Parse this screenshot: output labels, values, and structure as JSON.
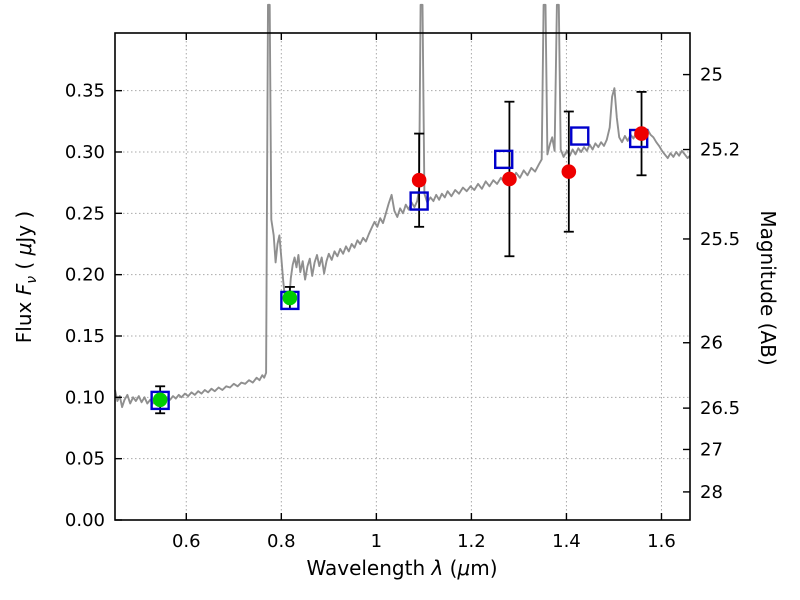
{
  "chart_data": {
    "type": "line",
    "description": "Galaxy SED: model spectrum (gray line) with observed photometry (filled circles with error bars) and model photometry (open blue squares)",
    "title": "",
    "xlabel": "Wavelength λ (μm)",
    "ylabel_left": "Flux Fν ( μJy )",
    "ylabel_right": "Magnitude (AB)",
    "xlabel_parts": [
      {
        "text": "Wavelength  ",
        "style": "plain"
      },
      {
        "text": "λ",
        "style": "italic"
      },
      {
        "text": " (",
        "style": "plain"
      },
      {
        "text": "μ",
        "style": "italic"
      },
      {
        "text": "m)",
        "style": "plain"
      }
    ],
    "ylabel_left_parts": [
      {
        "text": "Flux  ",
        "style": "plain"
      },
      {
        "text": "F",
        "style": "italic"
      },
      {
        "text": "ν",
        "style": "sub"
      },
      {
        "text": "  ( ",
        "style": "plain"
      },
      {
        "text": "μ",
        "style": "italic"
      },
      {
        "text": "Jy )",
        "style": "plain"
      }
    ],
    "xlim": [
      0.45,
      1.66
    ],
    "ylim": [
      0.0,
      0.397
    ],
    "grid": true,
    "x_ticks": [
      0.6,
      0.8,
      1.0,
      1.2,
      1.4,
      1.6
    ],
    "x_tick_labels": [
      "0.6",
      "0.8",
      "1",
      "1.2",
      "1.4",
      "1.6"
    ],
    "y_ticks_left": [
      0.0,
      0.05,
      0.1,
      0.15,
      0.2,
      0.25,
      0.3,
      0.35
    ],
    "y_tick_labels_left": [
      "0.00",
      "0.05",
      "0.10",
      "0.15",
      "0.20",
      "0.25",
      "0.30",
      "0.35"
    ],
    "y_ticks_right": [
      {
        "label": "25",
        "flux": 0.3631
      },
      {
        "label": "25.2",
        "flux": 0.302
      },
      {
        "label": "25.5",
        "flux": 0.2291
      },
      {
        "label": "26",
        "flux": 0.1445
      },
      {
        "label": "26.5",
        "flux": 0.0912
      },
      {
        "label": "27",
        "flux": 0.0575
      },
      {
        "label": "28",
        "flux": 0.0229
      }
    ],
    "colors": {
      "spectrum": "#8f8f8f",
      "observed_green": "#00cc00",
      "observed_red": "#ee0000",
      "model": "#0000cc",
      "errorbar": "#000000",
      "grid": "#aaaaaa",
      "frame": "#000000"
    },
    "observed": [
      {
        "x": 0.545,
        "y": 0.098,
        "yerr": 0.011,
        "color": "#00cc00"
      },
      {
        "x": 0.818,
        "y": 0.181,
        "yerr": 0.009,
        "color": "#00cc00"
      },
      {
        "x": 1.09,
        "y": 0.277,
        "yerr": 0.038,
        "color": "#ee0000"
      },
      {
        "x": 1.28,
        "y": 0.278,
        "yerr": 0.063,
        "color": "#ee0000"
      },
      {
        "x": 1.405,
        "y": 0.284,
        "yerr": 0.049,
        "color": "#ee0000"
      },
      {
        "x": 1.558,
        "y": 0.315,
        "yerr": 0.034,
        "color": "#ee0000"
      }
    ],
    "model": [
      {
        "x": 0.545,
        "y": 0.0975
      },
      {
        "x": 0.818,
        "y": 0.179
      },
      {
        "x": 1.09,
        "y": 0.26
      },
      {
        "x": 1.268,
        "y": 0.294
      },
      {
        "x": 1.428,
        "y": 0.313
      },
      {
        "x": 1.552,
        "y": 0.311
      }
    ],
    "spectrum": [
      [
        0.45,
        0.106
      ],
      [
        0.455,
        0.097
      ],
      [
        0.46,
        0.101
      ],
      [
        0.465,
        0.092
      ],
      [
        0.47,
        0.098
      ],
      [
        0.476,
        0.102
      ],
      [
        0.482,
        0.095
      ],
      [
        0.488,
        0.1
      ],
      [
        0.494,
        0.097
      ],
      [
        0.5,
        0.101
      ],
      [
        0.506,
        0.096
      ],
      [
        0.512,
        0.1
      ],
      [
        0.518,
        0.095
      ],
      [
        0.524,
        0.098
      ],
      [
        0.53,
        0.095
      ],
      [
        0.536,
        0.098
      ],
      [
        0.542,
        0.096
      ],
      [
        0.548,
        0.099
      ],
      [
        0.554,
        0.097
      ],
      [
        0.56,
        0.1
      ],
      [
        0.566,
        0.098
      ],
      [
        0.572,
        0.101
      ],
      [
        0.578,
        0.099
      ],
      [
        0.584,
        0.102
      ],
      [
        0.59,
        0.1
      ],
      [
        0.597,
        0.103
      ],
      [
        0.604,
        0.101
      ],
      [
        0.611,
        0.104
      ],
      [
        0.618,
        0.102
      ],
      [
        0.625,
        0.105
      ],
      [
        0.632,
        0.103
      ],
      [
        0.639,
        0.106
      ],
      [
        0.646,
        0.104
      ],
      [
        0.653,
        0.107
      ],
      [
        0.66,
        0.105
      ],
      [
        0.668,
        0.108
      ],
      [
        0.676,
        0.106
      ],
      [
        0.684,
        0.109
      ],
      [
        0.692,
        0.108
      ],
      [
        0.7,
        0.111
      ],
      [
        0.708,
        0.109
      ],
      [
        0.716,
        0.112
      ],
      [
        0.724,
        0.111
      ],
      [
        0.732,
        0.114
      ],
      [
        0.74,
        0.112
      ],
      [
        0.748,
        0.116
      ],
      [
        0.754,
        0.114
      ],
      [
        0.76,
        0.118
      ],
      [
        0.764,
        0.116
      ],
      [
        0.768,
        0.12
      ],
      [
        0.772,
        0.42
      ],
      [
        0.7755,
        0.42
      ],
      [
        0.779,
        0.245
      ],
      [
        0.784,
        0.232
      ],
      [
        0.788,
        0.21
      ],
      [
        0.792,
        0.225
      ],
      [
        0.796,
        0.232
      ],
      [
        0.8,
        0.214
      ],
      [
        0.804,
        0.195
      ],
      [
        0.808,
        0.18
      ],
      [
        0.812,
        0.184
      ],
      [
        0.816,
        0.177
      ],
      [
        0.82,
        0.197
      ],
      [
        0.824,
        0.208
      ],
      [
        0.828,
        0.214
      ],
      [
        0.832,
        0.206
      ],
      [
        0.836,
        0.216
      ],
      [
        0.84,
        0.202
      ],
      [
        0.845,
        0.211
      ],
      [
        0.85,
        0.196
      ],
      [
        0.855,
        0.207
      ],
      [
        0.86,
        0.213
      ],
      [
        0.865,
        0.199
      ],
      [
        0.87,
        0.21
      ],
      [
        0.875,
        0.216
      ],
      [
        0.88,
        0.207
      ],
      [
        0.885,
        0.214
      ],
      [
        0.89,
        0.201
      ],
      [
        0.895,
        0.211
      ],
      [
        0.9,
        0.217
      ],
      [
        0.906,
        0.212
      ],
      [
        0.912,
        0.219
      ],
      [
        0.918,
        0.215
      ],
      [
        0.924,
        0.221
      ],
      [
        0.93,
        0.217
      ],
      [
        0.936,
        0.223
      ],
      [
        0.942,
        0.219
      ],
      [
        0.948,
        0.225
      ],
      [
        0.954,
        0.222
      ],
      [
        0.96,
        0.228
      ],
      [
        0.966,
        0.225
      ],
      [
        0.972,
        0.23
      ],
      [
        0.978,
        0.227
      ],
      [
        0.984,
        0.233
      ],
      [
        0.99,
        0.238
      ],
      [
        0.996,
        0.243
      ],
      [
        1.002,
        0.239
      ],
      [
        1.008,
        0.246
      ],
      [
        1.014,
        0.242
      ],
      [
        1.02,
        0.25
      ],
      [
        1.026,
        0.258
      ],
      [
        1.032,
        0.265
      ],
      [
        1.038,
        0.252
      ],
      [
        1.044,
        0.247
      ],
      [
        1.05,
        0.254
      ],
      [
        1.056,
        0.25
      ],
      [
        1.062,
        0.257
      ],
      [
        1.068,
        0.253
      ],
      [
        1.074,
        0.259
      ],
      [
        1.08,
        0.255
      ],
      [
        1.086,
        0.26
      ],
      [
        1.09,
        0.27
      ],
      [
        1.093,
        0.42
      ],
      [
        1.097,
        0.42
      ],
      [
        1.101,
        0.266
      ],
      [
        1.107,
        0.259
      ],
      [
        1.114,
        0.263
      ],
      [
        1.12,
        0.26
      ],
      [
        1.126,
        0.265
      ],
      [
        1.132,
        0.261
      ],
      [
        1.138,
        0.266
      ],
      [
        1.144,
        0.263
      ],
      [
        1.15,
        0.268
      ],
      [
        1.158,
        0.264
      ],
      [
        1.166,
        0.269
      ],
      [
        1.174,
        0.266
      ],
      [
        1.182,
        0.271
      ],
      [
        1.19,
        0.268
      ],
      [
        1.198,
        0.272
      ],
      [
        1.206,
        0.269
      ],
      [
        1.214,
        0.274
      ],
      [
        1.222,
        0.27
      ],
      [
        1.23,
        0.276
      ],
      [
        1.238,
        0.272
      ],
      [
        1.246,
        0.277
      ],
      [
        1.254,
        0.274
      ],
      [
        1.262,
        0.279
      ],
      [
        1.27,
        0.275
      ],
      [
        1.278,
        0.281
      ],
      [
        1.286,
        0.277
      ],
      [
        1.294,
        0.283
      ],
      [
        1.302,
        0.279
      ],
      [
        1.31,
        0.285
      ],
      [
        1.318,
        0.281
      ],
      [
        1.326,
        0.287
      ],
      [
        1.334,
        0.284
      ],
      [
        1.342,
        0.29
      ],
      [
        1.348,
        0.294
      ],
      [
        1.352,
        0.42
      ],
      [
        1.356,
        0.42
      ],
      [
        1.36,
        0.298
      ],
      [
        1.365,
        0.306
      ],
      [
        1.37,
        0.312
      ],
      [
        1.375,
        0.301
      ],
      [
        1.38,
        0.42
      ],
      [
        1.384,
        0.42
      ],
      [
        1.388,
        0.302
      ],
      [
        1.394,
        0.296
      ],
      [
        1.401,
        0.301
      ],
      [
        1.407,
        0.297
      ],
      [
        1.413,
        0.302
      ],
      [
        1.419,
        0.298
      ],
      [
        1.425,
        0.303
      ],
      [
        1.431,
        0.3
      ],
      [
        1.437,
        0.304
      ],
      [
        1.443,
        0.301
      ],
      [
        1.449,
        0.306
      ],
      [
        1.455,
        0.302
      ],
      [
        1.461,
        0.307
      ],
      [
        1.467,
        0.304
      ],
      [
        1.473,
        0.308
      ],
      [
        1.479,
        0.305
      ],
      [
        1.485,
        0.31
      ],
      [
        1.491,
        0.32
      ],
      [
        1.496,
        0.345
      ],
      [
        1.501,
        0.352
      ],
      [
        1.506,
        0.328
      ],
      [
        1.511,
        0.312
      ],
      [
        1.517,
        0.308
      ],
      [
        1.523,
        0.313
      ],
      [
        1.529,
        0.309
      ],
      [
        1.535,
        0.314
      ],
      [
        1.541,
        0.311
      ],
      [
        1.547,
        0.316
      ],
      [
        1.553,
        0.312
      ],
      [
        1.559,
        0.317
      ],
      [
        1.565,
        0.313
      ],
      [
        1.571,
        0.318
      ],
      [
        1.577,
        0.314
      ],
      [
        1.583,
        0.312
      ],
      [
        1.589,
        0.308
      ],
      [
        1.595,
        0.305
      ],
      [
        1.601,
        0.301
      ],
      [
        1.607,
        0.298
      ],
      [
        1.613,
        0.295
      ],
      [
        1.619,
        0.299
      ],
      [
        1.625,
        0.296
      ],
      [
        1.631,
        0.3
      ],
      [
        1.637,
        0.297
      ],
      [
        1.643,
        0.301
      ],
      [
        1.649,
        0.298
      ],
      [
        1.655,
        0.295
      ],
      [
        1.66,
        0.297
      ]
    ]
  }
}
